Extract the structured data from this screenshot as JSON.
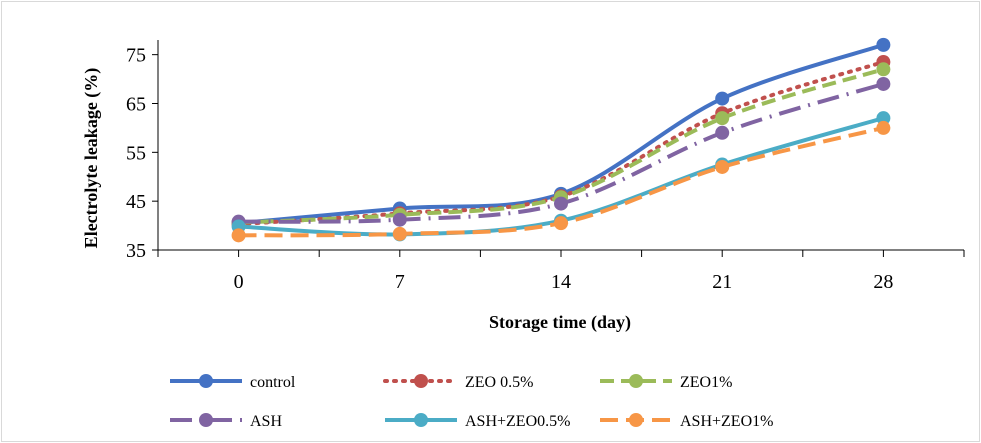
{
  "chart_data": {
    "type": "line",
    "title": "",
    "xlabel": "Storage time (day)",
    "ylabel": "Electrolyte leakage (%)",
    "x": [
      0,
      7,
      14,
      21,
      28
    ],
    "x_tick_labels": [
      "0",
      "7",
      "14",
      "21",
      "28"
    ],
    "y_ticks": [
      35,
      45,
      55,
      65,
      75
    ],
    "ylim": [
      35,
      78
    ],
    "grid": false,
    "legend_position": "bottom",
    "series": [
      {
        "name": "control",
        "values": [
          40.5,
          43.5,
          46.5,
          66,
          77
        ],
        "color": "#4472C4",
        "style": "solid"
      },
      {
        "name": "ZEO 0.5%",
        "values": [
          40.3,
          42.5,
          46,
          63,
          73.5
        ],
        "color": "#C0504D",
        "style": "dotted"
      },
      {
        "name": "ZEO1%",
        "values": [
          40.6,
          42.2,
          45.8,
          62,
          72
        ],
        "color": "#9BBB59",
        "style": "dashed"
      },
      {
        "name": "ASH",
        "values": [
          40.8,
          41.2,
          44.5,
          59,
          69
        ],
        "color": "#8064A2",
        "style": "dashdot"
      },
      {
        "name": "ASH+ZEO0.5%",
        "values": [
          39.8,
          38.2,
          41,
          52.5,
          62
        ],
        "color": "#4BACC6",
        "style": "solid"
      },
      {
        "name": "ASH+ZEO1%",
        "values": [
          38,
          38.3,
          40.5,
          52,
          60
        ],
        "color": "#F79646",
        "style": "longdash"
      }
    ]
  }
}
